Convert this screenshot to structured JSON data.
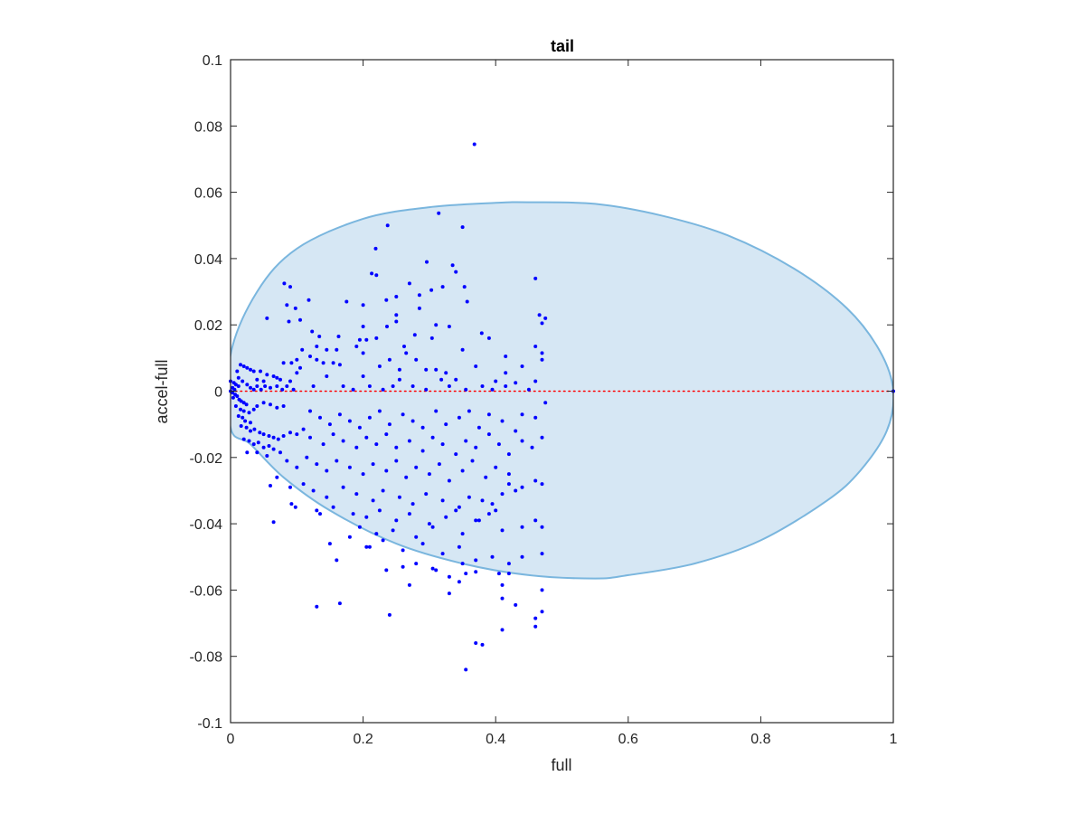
{
  "chart_data": {
    "type": "scatter",
    "title": "tail",
    "xlabel": "full",
    "ylabel": "accel-full",
    "xlim": [
      0,
      1
    ],
    "ylim": [
      -0.1,
      0.1
    ],
    "xticks": [
      0,
      0.2,
      0.4,
      0.6,
      0.8,
      1
    ],
    "xtick_labels": [
      "0",
      "0.2",
      "0.4",
      "0.6",
      "0.8",
      "1"
    ],
    "yticks": [
      -0.1,
      -0.08,
      -0.06,
      -0.04,
      -0.02,
      0,
      0.02,
      0.04,
      0.06,
      0.08,
      0.1
    ],
    "ytick_labels": [
      "-0.1",
      "-0.08",
      "-0.06",
      "-0.04",
      "-0.02",
      "0",
      "0.02",
      "0.04",
      "0.06",
      "0.08",
      "0.1"
    ],
    "grid": false,
    "colors": {
      "points": "#0000ff",
      "ellipse_fill": "#d6e7f4",
      "ellipse_edge": "#7ab6de",
      "zero_line": "#ff0000"
    },
    "reference_line": {
      "y": 0,
      "x": [
        0,
        1
      ],
      "style": "dotted"
    },
    "region": {
      "shape": "ellipse",
      "outline": [
        [
          0,
          0.011
        ],
        [
          0.04,
          0.03
        ],
        [
          0.1,
          0.043
        ],
        [
          0.2,
          0.052
        ],
        [
          0.3,
          0.0555
        ],
        [
          0.4,
          0.0568
        ],
        [
          0.45,
          0.057
        ],
        [
          0.55,
          0.0565
        ],
        [
          0.65,
          0.053
        ],
        [
          0.75,
          0.047
        ],
        [
          0.85,
          0.037
        ],
        [
          0.93,
          0.025
        ],
        [
          0.98,
          0.012
        ],
        [
          1.0,
          0
        ],
        [
          0.99,
          -0.012
        ],
        [
          0.95,
          -0.024
        ],
        [
          0.9,
          -0.033
        ],
        [
          0.8,
          -0.045
        ],
        [
          0.7,
          -0.052
        ],
        [
          0.6,
          -0.0555
        ],
        [
          0.55,
          -0.0565
        ],
        [
          0.45,
          -0.0555
        ],
        [
          0.35,
          -0.052
        ],
        [
          0.25,
          -0.046
        ],
        [
          0.15,
          -0.036
        ],
        [
          0.08,
          -0.026
        ],
        [
          0.03,
          -0.016
        ],
        [
          0,
          -0.011
        ]
      ]
    },
    "points": [
      [
        0.368,
        0.0745
      ],
      [
        0.314,
        0.0537
      ],
      [
        0.35,
        0.0495
      ],
      [
        0.237,
        0.05
      ],
      [
        0.219,
        0.043
      ],
      [
        0.296,
        0.039
      ],
      [
        0.335,
        0.038
      ],
      [
        0.213,
        0.0355
      ],
      [
        0.22,
        0.035
      ],
      [
        0.34,
        0.036
      ],
      [
        0.46,
        0.034
      ],
      [
        0.081,
        0.0325
      ],
      [
        0.09,
        0.0315
      ],
      [
        0.27,
        0.0325
      ],
      [
        0.303,
        0.0305
      ],
      [
        0.285,
        0.029
      ],
      [
        0.32,
        0.0315
      ],
      [
        0.25,
        0.0285
      ],
      [
        0.235,
        0.0275
      ],
      [
        0.353,
        0.0315
      ],
      [
        0.118,
        0.0275
      ],
      [
        0.175,
        0.027
      ],
      [
        0.2,
        0.026
      ],
      [
        0.357,
        0.027
      ],
      [
        0.085,
        0.026
      ],
      [
        0.098,
        0.025
      ],
      [
        0.285,
        0.025
      ],
      [
        0.25,
        0.023
      ],
      [
        0.466,
        0.023
      ],
      [
        0.475,
        0.022
      ],
      [
        0.055,
        0.022
      ],
      [
        0.105,
        0.0215
      ],
      [
        0.088,
        0.021
      ],
      [
        0.25,
        0.021
      ],
      [
        0.31,
        0.02
      ],
      [
        0.33,
        0.0195
      ],
      [
        0.2,
        0.0195
      ],
      [
        0.47,
        0.0205
      ],
      [
        0.236,
        0.0195
      ],
      [
        0.123,
        0.018
      ],
      [
        0.163,
        0.0165
      ],
      [
        0.379,
        0.0175
      ],
      [
        0.278,
        0.017
      ],
      [
        0.134,
        0.0165
      ],
      [
        0.304,
        0.016
      ],
      [
        0.39,
        0.016
      ],
      [
        0.195,
        0.0155
      ],
      [
        0.205,
        0.0155
      ],
      [
        0.22,
        0.016
      ],
      [
        0.19,
        0.0135
      ],
      [
        0.262,
        0.0135
      ],
      [
        0.13,
        0.0135
      ],
      [
        0.145,
        0.0125
      ],
      [
        0.16,
        0.0125
      ],
      [
        0.2,
        0.0115
      ],
      [
        0.265,
        0.0115
      ],
      [
        0.35,
        0.0125
      ],
      [
        0.108,
        0.0125
      ],
      [
        0.46,
        0.0135
      ],
      [
        0.47,
        0.0115
      ],
      [
        0.12,
        0.0105
      ],
      [
        0.24,
        0.0095
      ],
      [
        0.28,
        0.0095
      ],
      [
        0.415,
        0.0105
      ],
      [
        0.47,
        0.0095
      ],
      [
        0.1,
        0.0095
      ],
      [
        0.13,
        0.0095
      ],
      [
        0.155,
        0.0085
      ],
      [
        0.14,
        0.0085
      ],
      [
        0.08,
        0.0085
      ],
      [
        0.092,
        0.0085
      ],
      [
        0.165,
        0.008
      ],
      [
        0.225,
        0.0075
      ],
      [
        0.37,
        0.0075
      ],
      [
        0.44,
        0.0075
      ],
      [
        0.105,
        0.007
      ],
      [
        0.295,
        0.0065
      ],
      [
        0.255,
        0.0065
      ],
      [
        0.31,
        0.0065
      ],
      [
        0.325,
        0.0055
      ],
      [
        0.415,
        0.0055
      ],
      [
        0.1,
        0.0055
      ],
      [
        0.145,
        0.0045
      ],
      [
        0.2,
        0.0045
      ],
      [
        0.255,
        0.0035
      ],
      [
        0.318,
        0.0035
      ],
      [
        0.34,
        0.0035
      ],
      [
        0.4,
        0.003
      ],
      [
        0.43,
        0.0025
      ],
      [
        0.46,
        0.003
      ],
      [
        0.015,
        0.008
      ],
      [
        0.02,
        0.0075
      ],
      [
        0.025,
        0.007
      ],
      [
        0.03,
        0.0065
      ],
      [
        0.01,
        0.006
      ],
      [
        0.035,
        0.006
      ],
      [
        0.045,
        0.006
      ],
      [
        0.055,
        0.005
      ],
      [
        0.065,
        0.0045
      ],
      [
        0.07,
        0.004
      ],
      [
        0.075,
        0.0035
      ],
      [
        0.09,
        0.003
      ],
      [
        0.05,
        0.003
      ],
      [
        0.04,
        0.0035
      ],
      [
        0.0,
        0.003
      ],
      [
        0.005,
        0.0025
      ],
      [
        0.008,
        0.002
      ],
      [
        0.012,
        0.0015
      ],
      [
        0.003,
        0.001
      ],
      [
        0.006,
        0.0005
      ],
      [
        0.0,
        0.0
      ],
      [
        0.003,
        -0.0005
      ],
      [
        0.007,
        -0.001
      ],
      [
        0.01,
        -0.0015
      ],
      [
        0.004,
        -0.002
      ],
      [
        0.013,
        -0.0025
      ],
      [
        0.016,
        -0.003
      ],
      [
        0.02,
        -0.0035
      ],
      [
        0.024,
        -0.004
      ],
      [
        0.012,
        0.004
      ],
      [
        0.018,
        0.003
      ],
      [
        0.025,
        0.002
      ],
      [
        0.03,
        0.001
      ],
      [
        0.035,
        0.0005
      ],
      [
        0.04,
        0.0015
      ],
      [
        0.046,
        0.0005
      ],
      [
        0.052,
        0.0015
      ],
      [
        0.06,
        0.001
      ],
      [
        0.07,
        0.0015
      ],
      [
        0.078,
        0.0005
      ],
      [
        0.085,
        0.0015
      ],
      [
        0.095,
        0.0005
      ],
      [
        0.125,
        0.0015
      ],
      [
        0.17,
        0.0015
      ],
      [
        0.185,
        0.0005
      ],
      [
        0.21,
        0.0015
      ],
      [
        0.23,
        0.0005
      ],
      [
        0.245,
        0.0015
      ],
      [
        0.275,
        0.0015
      ],
      [
        0.295,
        0.0005
      ],
      [
        0.33,
        0.0015
      ],
      [
        0.355,
        0.0005
      ],
      [
        0.38,
        0.0015
      ],
      [
        0.395,
        0.0005
      ],
      [
        0.415,
        0.0015
      ],
      [
        0.45,
        0.0005
      ],
      [
        1.0,
        0.0
      ],
      [
        0.008,
        -0.0045
      ],
      [
        0.015,
        -0.0055
      ],
      [
        0.02,
        -0.006
      ],
      [
        0.028,
        -0.0065
      ],
      [
        0.035,
        -0.0055
      ],
      [
        0.04,
        -0.0045
      ],
      [
        0.05,
        -0.0035
      ],
      [
        0.06,
        -0.004
      ],
      [
        0.07,
        -0.005
      ],
      [
        0.08,
        -0.0045
      ],
      [
        0.012,
        -0.0075
      ],
      [
        0.018,
        -0.008
      ],
      [
        0.022,
        -0.009
      ],
      [
        0.03,
        -0.0095
      ],
      [
        0.016,
        -0.0105
      ],
      [
        0.024,
        -0.011
      ],
      [
        0.03,
        -0.012
      ],
      [
        0.036,
        -0.0115
      ],
      [
        0.044,
        -0.0125
      ],
      [
        0.05,
        -0.013
      ],
      [
        0.058,
        -0.0135
      ],
      [
        0.065,
        -0.014
      ],
      [
        0.072,
        -0.0145
      ],
      [
        0.08,
        -0.0135
      ],
      [
        0.09,
        -0.0125
      ],
      [
        0.1,
        -0.013
      ],
      [
        0.11,
        -0.0115
      ],
      [
        0.02,
        -0.0145
      ],
      [
        0.028,
        -0.015
      ],
      [
        0.035,
        -0.016
      ],
      [
        0.042,
        -0.0155
      ],
      [
        0.05,
        -0.017
      ],
      [
        0.058,
        -0.0165
      ],
      [
        0.065,
        -0.0175
      ],
      [
        0.025,
        -0.0185
      ],
      [
        0.04,
        -0.0185
      ],
      [
        0.055,
        -0.0195
      ],
      [
        0.075,
        -0.0185
      ],
      [
        0.12,
        -0.006
      ],
      [
        0.135,
        -0.008
      ],
      [
        0.15,
        -0.01
      ],
      [
        0.165,
        -0.007
      ],
      [
        0.18,
        -0.009
      ],
      [
        0.195,
        -0.011
      ],
      [
        0.21,
        -0.008
      ],
      [
        0.225,
        -0.006
      ],
      [
        0.24,
        -0.01
      ],
      [
        0.26,
        -0.007
      ],
      [
        0.275,
        -0.009
      ],
      [
        0.29,
        -0.011
      ],
      [
        0.31,
        -0.006
      ],
      [
        0.325,
        -0.01
      ],
      [
        0.345,
        -0.008
      ],
      [
        0.36,
        -0.006
      ],
      [
        0.375,
        -0.011
      ],
      [
        0.39,
        -0.007
      ],
      [
        0.41,
        -0.009
      ],
      [
        0.43,
        -0.012
      ],
      [
        0.44,
        -0.007
      ],
      [
        0.46,
        -0.008
      ],
      [
        0.475,
        -0.0035
      ],
      [
        0.12,
        -0.014
      ],
      [
        0.14,
        -0.016
      ],
      [
        0.155,
        -0.013
      ],
      [
        0.17,
        -0.015
      ],
      [
        0.19,
        -0.017
      ],
      [
        0.205,
        -0.014
      ],
      [
        0.22,
        -0.016
      ],
      [
        0.235,
        -0.013
      ],
      [
        0.25,
        -0.017
      ],
      [
        0.27,
        -0.015
      ],
      [
        0.29,
        -0.018
      ],
      [
        0.305,
        -0.014
      ],
      [
        0.32,
        -0.016
      ],
      [
        0.34,
        -0.019
      ],
      [
        0.355,
        -0.015
      ],
      [
        0.37,
        -0.017
      ],
      [
        0.39,
        -0.013
      ],
      [
        0.405,
        -0.016
      ],
      [
        0.42,
        -0.019
      ],
      [
        0.44,
        -0.015
      ],
      [
        0.455,
        -0.017
      ],
      [
        0.47,
        -0.014
      ],
      [
        0.085,
        -0.021
      ],
      [
        0.1,
        -0.023
      ],
      [
        0.115,
        -0.02
      ],
      [
        0.13,
        -0.022
      ],
      [
        0.145,
        -0.024
      ],
      [
        0.16,
        -0.021
      ],
      [
        0.18,
        -0.023
      ],
      [
        0.2,
        -0.025
      ],
      [
        0.215,
        -0.022
      ],
      [
        0.235,
        -0.024
      ],
      [
        0.25,
        -0.021
      ],
      [
        0.265,
        -0.026
      ],
      [
        0.28,
        -0.023
      ],
      [
        0.3,
        -0.025
      ],
      [
        0.315,
        -0.022
      ],
      [
        0.33,
        -0.027
      ],
      [
        0.35,
        -0.024
      ],
      [
        0.365,
        -0.021
      ],
      [
        0.385,
        -0.026
      ],
      [
        0.4,
        -0.023
      ],
      [
        0.42,
        -0.025
      ],
      [
        0.46,
        -0.027
      ],
      [
        0.47,
        -0.028
      ],
      [
        0.44,
        -0.029
      ],
      [
        0.06,
        -0.0285
      ],
      [
        0.07,
        -0.026
      ],
      [
        0.09,
        -0.029
      ],
      [
        0.11,
        -0.028
      ],
      [
        0.125,
        -0.03
      ],
      [
        0.145,
        -0.032
      ],
      [
        0.17,
        -0.029
      ],
      [
        0.19,
        -0.031
      ],
      [
        0.215,
        -0.033
      ],
      [
        0.23,
        -0.03
      ],
      [
        0.255,
        -0.032
      ],
      [
        0.275,
        -0.034
      ],
      [
        0.295,
        -0.031
      ],
      [
        0.32,
        -0.033
      ],
      [
        0.345,
        -0.035
      ],
      [
        0.36,
        -0.032
      ],
      [
        0.38,
        -0.033
      ],
      [
        0.395,
        -0.034
      ],
      [
        0.41,
        -0.031
      ],
      [
        0.42,
        -0.028
      ],
      [
        0.43,
        -0.03
      ],
      [
        0.092,
        -0.034
      ],
      [
        0.098,
        -0.035
      ],
      [
        0.13,
        -0.036
      ],
      [
        0.155,
        -0.035
      ],
      [
        0.185,
        -0.037
      ],
      [
        0.205,
        -0.038
      ],
      [
        0.225,
        -0.036
      ],
      [
        0.25,
        -0.039
      ],
      [
        0.27,
        -0.037
      ],
      [
        0.3,
        -0.04
      ],
      [
        0.325,
        -0.038
      ],
      [
        0.34,
        -0.036
      ],
      [
        0.37,
        -0.039
      ],
      [
        0.39,
        -0.037
      ],
      [
        0.4,
        -0.036
      ],
      [
        0.135,
        -0.037
      ],
      [
        0.065,
        -0.0395
      ],
      [
        0.195,
        -0.041
      ],
      [
        0.22,
        -0.043
      ],
      [
        0.245,
        -0.042
      ],
      [
        0.28,
        -0.044
      ],
      [
        0.305,
        -0.041
      ],
      [
        0.35,
        -0.043
      ],
      [
        0.375,
        -0.039
      ],
      [
        0.41,
        -0.042
      ],
      [
        0.44,
        -0.041
      ],
      [
        0.46,
        -0.039
      ],
      [
        0.47,
        -0.041
      ],
      [
        0.15,
        -0.046
      ],
      [
        0.18,
        -0.044
      ],
      [
        0.205,
        -0.047
      ],
      [
        0.23,
        -0.045
      ],
      [
        0.26,
        -0.048
      ],
      [
        0.29,
        -0.046
      ],
      [
        0.32,
        -0.049
      ],
      [
        0.345,
        -0.047
      ],
      [
        0.37,
        -0.051
      ],
      [
        0.395,
        -0.05
      ],
      [
        0.42,
        -0.052
      ],
      [
        0.44,
        -0.05
      ],
      [
        0.47,
        -0.049
      ],
      [
        0.16,
        -0.051
      ],
      [
        0.21,
        -0.047
      ],
      [
        0.235,
        -0.054
      ],
      [
        0.26,
        -0.053
      ],
      [
        0.28,
        -0.052
      ],
      [
        0.31,
        -0.054
      ],
      [
        0.33,
        -0.056
      ],
      [
        0.355,
        -0.055
      ],
      [
        0.33,
        -0.061
      ],
      [
        0.35,
        -0.052
      ],
      [
        0.42,
        -0.055
      ],
      [
        0.405,
        -0.055
      ],
      [
        0.13,
        -0.065
      ],
      [
        0.165,
        -0.064
      ],
      [
        0.24,
        -0.0675
      ],
      [
        0.27,
        -0.0585
      ],
      [
        0.305,
        -0.0535
      ],
      [
        0.345,
        -0.0575
      ],
      [
        0.37,
        -0.0545
      ],
      [
        0.41,
        -0.0585
      ],
      [
        0.41,
        -0.0625
      ],
      [
        0.43,
        -0.0645
      ],
      [
        0.47,
        -0.06
      ],
      [
        0.46,
        -0.0685
      ],
      [
        0.47,
        -0.0665
      ],
      [
        0.46,
        -0.071
      ],
      [
        0.41,
        -0.072
      ],
      [
        0.37,
        -0.076
      ],
      [
        0.38,
        -0.0765
      ],
      [
        0.355,
        -0.084
      ]
    ]
  }
}
